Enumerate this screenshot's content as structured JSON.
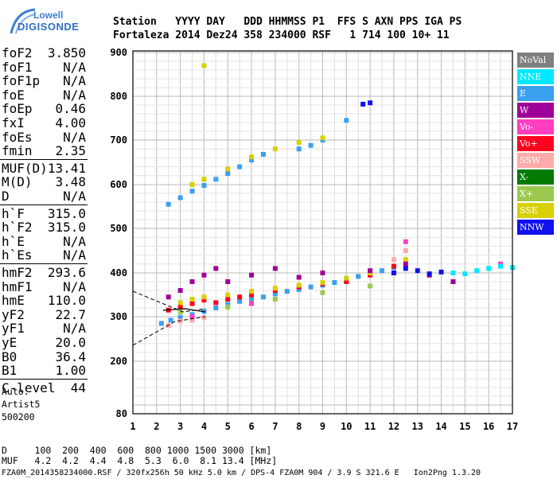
{
  "logo": {
    "line1": "Lowell",
    "line2": "DIGISONDE"
  },
  "header": {
    "line1": "Station   YYYY DAY   DDD HHMMSS P1  FFS S AXN PPS IGA PS",
    "line2": "Fortaleza 2014 Dez24 358 234000 RSF   1 714 100 10+ 11"
  },
  "params": [
    {
      "k": "foF2",
      "v": "3.850"
    },
    {
      "k": "foF1",
      "v": "N/A"
    },
    {
      "k": "foF1p",
      "v": "N/A"
    },
    {
      "k": "foE",
      "v": "N/A"
    },
    {
      "k": "foEp",
      "v": "0.46"
    },
    {
      "k": "fxI",
      "v": "4.00"
    },
    {
      "k": "foEs",
      "v": "N/A"
    },
    {
      "k": "fmin",
      "v": "2.35"
    },
    {
      "k": "MUF(D)",
      "v": "13.41"
    },
    {
      "k": "M(D)",
      "v": "3.48"
    },
    {
      "k": "D",
      "v": "N/A"
    },
    {
      "k": "h`F",
      "v": "315.0"
    },
    {
      "k": "h`F2",
      "v": "315.0"
    },
    {
      "k": "h`E",
      "v": "N/A"
    },
    {
      "k": "h`Es",
      "v": "N/A"
    },
    {
      "k": "hmF2",
      "v": "293.6"
    },
    {
      "k": "hmF1",
      "v": "N/A"
    },
    {
      "k": "hmE",
      "v": "110.0"
    },
    {
      "k": "yF2",
      "v": "22.7"
    },
    {
      "k": "yF1",
      "v": "N/A"
    },
    {
      "k": "yE",
      "v": "20.0"
    },
    {
      "k": "B0",
      "v": "36.4"
    },
    {
      "k": "B1",
      "v": "1.00"
    },
    {
      "k": "C-level",
      "v": "44"
    }
  ],
  "auto": {
    "line1": "Auto:",
    "line2": "Artist5",
    "line3": "500200"
  },
  "legend": [
    {
      "label": "NoVal",
      "color": "#808080"
    },
    {
      "label": "NNE",
      "color": "#00e8ff"
    },
    {
      "label": "E",
      "color": "#3aa0f0"
    },
    {
      "label": "W",
      "color": "#a0009a"
    },
    {
      "label": "Vo-",
      "color": "#ff3ec0"
    },
    {
      "label": "Vo+",
      "color": "#ff0020"
    },
    {
      "label": "SSW",
      "color": "#ffaaa8"
    },
    {
      "label": "X-",
      "color": "#007a00"
    },
    {
      "label": "X+",
      "color": "#9cc850"
    },
    {
      "label": "SSE",
      "color": "#d8d000"
    },
    {
      "label": "NNW",
      "color": "#1010f0"
    }
  ],
  "chart_data": {
    "type": "scatter",
    "xlabel": "",
    "ylabel": "",
    "xlim": [
      1,
      17
    ],
    "ylim": [
      80,
      900
    ],
    "x_ticks": [
      "1",
      "2",
      "3",
      "4",
      "5",
      "6",
      "7",
      "8",
      "9",
      "10",
      "11",
      "12",
      "13",
      "14",
      "15",
      "16",
      "17"
    ],
    "y_ticks": [
      "80",
      "200",
      "300",
      "400",
      "500",
      "600",
      "700",
      "800",
      "900"
    ],
    "grid": true,
    "series": [
      {
        "name": "E",
        "points": [
          [
            2.2,
            285
          ],
          [
            2.6,
            292
          ],
          [
            3.0,
            298
          ],
          [
            3.5,
            305
          ],
          [
            4.0,
            312
          ],
          [
            4.5,
            320
          ],
          [
            5.0,
            328
          ],
          [
            5.5,
            335
          ],
          [
            6.0,
            340
          ],
          [
            6.5,
            345
          ],
          [
            7.0,
            352
          ],
          [
            7.5,
            358
          ],
          [
            8.0,
            362
          ],
          [
            8.5,
            368
          ],
          [
            9.0,
            372
          ],
          [
            9.5,
            378
          ],
          [
            10.0,
            385
          ],
          [
            10.5,
            392
          ],
          [
            11.0,
            398
          ],
          [
            11.5,
            405
          ],
          [
            12.0,
            412
          ],
          [
            2.5,
            555
          ],
          [
            3.0,
            570
          ],
          [
            3.5,
            585
          ],
          [
            4.0,
            598
          ],
          [
            4.5,
            612
          ],
          [
            5.0,
            625
          ],
          [
            5.5,
            640
          ],
          [
            6.0,
            655
          ],
          [
            6.5,
            668
          ],
          [
            8.0,
            680
          ],
          [
            8.5,
            688
          ],
          [
            9.0,
            700
          ],
          [
            10.0,
            745
          ]
        ]
      },
      {
        "name": "Vo+",
        "points": [
          [
            2.5,
            315
          ],
          [
            3.0,
            322
          ],
          [
            3.5,
            330
          ],
          [
            4.0,
            338
          ],
          [
            4.5,
            332
          ],
          [
            5.0,
            340
          ],
          [
            5.5,
            345
          ],
          [
            6.0,
            350
          ],
          [
            7.0,
            360
          ],
          [
            8.0,
            368
          ],
          [
            9.0,
            375
          ],
          [
            10.0,
            380
          ],
          [
            11.0,
            395
          ],
          [
            12.0,
            415
          ]
        ]
      },
      {
        "name": "SSE",
        "points": [
          [
            3.0,
            332
          ],
          [
            3.5,
            340
          ],
          [
            4.0,
            345
          ],
          [
            5.0,
            350
          ],
          [
            6.0,
            358
          ],
          [
            7.0,
            365
          ],
          [
            8.0,
            372
          ],
          [
            9.0,
            378
          ],
          [
            10.0,
            388
          ],
          [
            11.0,
            400
          ],
          [
            12.5,
            430
          ],
          [
            3.5,
            600
          ],
          [
            4.0,
            612
          ],
          [
            5.0,
            635
          ],
          [
            6.0,
            662
          ],
          [
            7.0,
            680
          ],
          [
            8.0,
            695
          ],
          [
            9.0,
            705
          ],
          [
            4.0,
            870
          ]
        ]
      },
      {
        "name": "W",
        "points": [
          [
            2.5,
            345
          ],
          [
            3.0,
            360
          ],
          [
            3.5,
            380
          ],
          [
            4.0,
            395
          ],
          [
            4.5,
            410
          ],
          [
            5.0,
            380
          ],
          [
            6.0,
            395
          ],
          [
            7.0,
            410
          ],
          [
            8.0,
            390
          ],
          [
            9.0,
            400
          ],
          [
            11.0,
            405
          ],
          [
            12.5,
            420
          ],
          [
            13.5,
            395
          ],
          [
            14.5,
            380
          ]
        ]
      },
      {
        "name": "SSW",
        "points": [
          [
            2.5,
            280
          ],
          [
            3.0,
            290
          ],
          [
            3.5,
            292
          ],
          [
            4.0,
            298
          ],
          [
            12.0,
            430
          ],
          [
            12.5,
            450
          ]
        ]
      },
      {
        "name": "X+",
        "points": [
          [
            3.0,
            310
          ],
          [
            5.0,
            322
          ],
          [
            7.0,
            340
          ],
          [
            9.0,
            355
          ],
          [
            11.0,
            370
          ]
        ]
      },
      {
        "name": "NNW",
        "points": [
          [
            12.0,
            400
          ],
          [
            12.5,
            410
          ],
          [
            13.0,
            405
          ],
          [
            13.5,
            398
          ],
          [
            14.0,
            402
          ],
          [
            10.7,
            782
          ],
          [
            11.0,
            785
          ]
        ]
      },
      {
        "name": "Vo-",
        "points": [
          [
            3.5,
            300
          ],
          [
            6.0,
            330
          ],
          [
            12.5,
            470
          ],
          [
            16.5,
            420
          ]
        ]
      },
      {
        "name": "NNE",
        "points": [
          [
            14.5,
            400
          ],
          [
            15.0,
            398
          ],
          [
            15.5,
            405
          ],
          [
            16.0,
            410
          ],
          [
            16.5,
            415
          ],
          [
            17.0,
            412
          ]
        ]
      }
    ]
  },
  "footer": {
    "line1": "D     100  200  400  600  800 1000 1500 3000 [km]",
    "line2": "MUF   4.2  4.2  4.4  4.8  5.3  6.0  8.1 13.4 [MHz]",
    "line3": "FZA0M_2014358234000.RSF / 320fx256h 50 kHz 5.0 km / DPS-4 FZA0M 904 / 3.9 S 321.6 E   Ion2Png 1.3.20"
  }
}
